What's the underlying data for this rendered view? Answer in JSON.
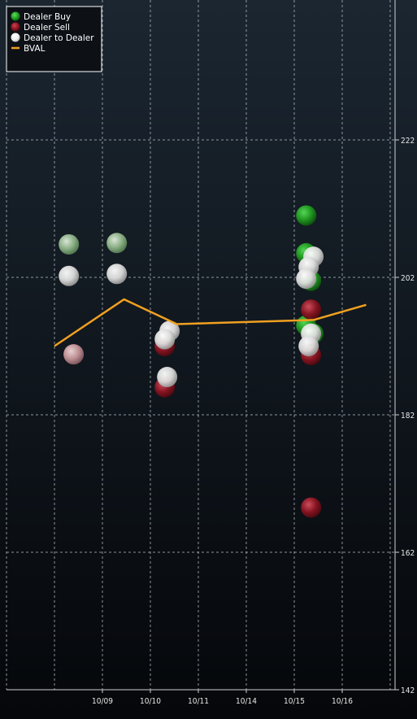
{
  "chart_data": {
    "type": "scatter",
    "background_colors": [
      "#1b2631",
      "#05070a"
    ],
    "x_tick_labels": [
      "10/09",
      "10/10",
      "10/11",
      "10/14",
      "10/15",
      "10/16"
    ],
    "y_ticks": [
      142,
      162,
      182,
      202,
      222
    ],
    "ylim": [
      142,
      242
    ],
    "grid": true,
    "legend_position": "top-left",
    "legend": [
      {
        "label": "Dealer Buy",
        "color": "#1f8a1f",
        "marker": "dot"
      },
      {
        "label": "Dealer Sell",
        "color": "#8b1420",
        "marker": "dot"
      },
      {
        "label": "Dealer to Dealer",
        "color": "#ffffff",
        "marker": "dot"
      },
      {
        "label": "BVAL",
        "color": "#f0a020",
        "marker": "line"
      }
    ],
    "series": [
      {
        "name": "Dealer Buy",
        "color": "#1f8a1f",
        "points": [
          {
            "x": 1.3,
            "y": 206.8,
            "light": true
          },
          {
            "x": 2.3,
            "y": 207.0,
            "light": true
          },
          {
            "x": 6.25,
            "y": 211.0
          },
          {
            "x": 6.25,
            "y": 205.5
          },
          {
            "x": 6.35,
            "y": 201.5
          },
          {
            "x": 6.25,
            "y": 195.0
          },
          {
            "x": 6.4,
            "y": 193.8
          }
        ]
      },
      {
        "name": "Dealer Sell",
        "color": "#8b1420",
        "points": [
          {
            "x": 1.4,
            "y": 190.8,
            "light": true
          },
          {
            "x": 3.3,
            "y": 192.0
          },
          {
            "x": 3.3,
            "y": 186.0
          },
          {
            "x": 6.35,
            "y": 197.3
          },
          {
            "x": 6.35,
            "y": 190.7
          },
          {
            "x": 6.35,
            "y": 168.5
          }
        ]
      },
      {
        "name": "Dealer to Dealer",
        "color": "#ffffff",
        "points": [
          {
            "x": 1.3,
            "y": 202.2
          },
          {
            "x": 2.3,
            "y": 202.5
          },
          {
            "x": 3.4,
            "y": 194.2
          },
          {
            "x": 3.3,
            "y": 193.0
          },
          {
            "x": 3.35,
            "y": 187.5
          },
          {
            "x": 6.4,
            "y": 205.0
          },
          {
            "x": 6.3,
            "y": 203.5
          },
          {
            "x": 6.25,
            "y": 201.8
          },
          {
            "x": 6.35,
            "y": 193.8
          },
          {
            "x": 6.3,
            "y": 192.0
          }
        ]
      }
    ],
    "bval_line": {
      "name": "BVAL",
      "color": "#f0a020",
      "points": [
        {
          "x": 1.0,
          "y": 192.0
        },
        {
          "x": 2.45,
          "y": 198.8
        },
        {
          "x": 3.55,
          "y": 195.2
        },
        {
          "x": 6.4,
          "y": 195.8
        },
        {
          "x": 7.5,
          "y": 198.0
        }
      ]
    }
  }
}
